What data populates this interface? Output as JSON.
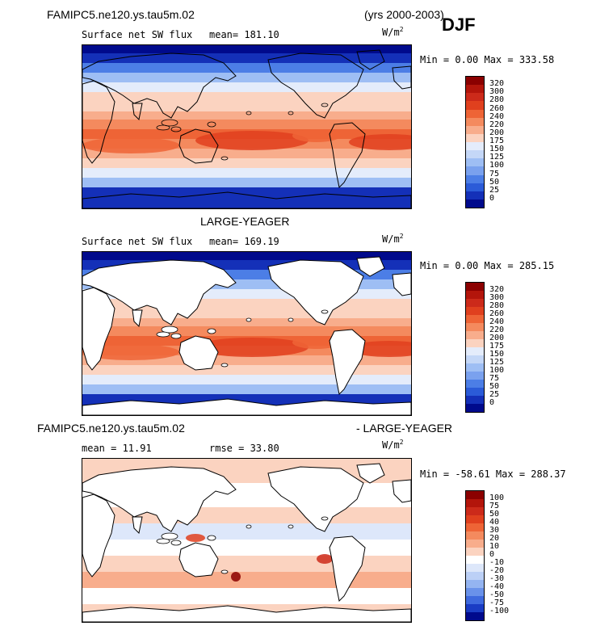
{
  "header": {
    "case_name": "FAMIPC5.ne120.ys.tau5m.02",
    "years": "(yrs 2000-2003)",
    "season": "DJF"
  },
  "panels": [
    {
      "title": "",
      "field_label": "Surface net SW flux",
      "stat1": "mean= 181.10",
      "stat2": "",
      "units": "W/m",
      "units_sup": "2",
      "minmax": "Min =   0.00 Max = 333.58",
      "land_masked": false,
      "colorbar": {
        "labels": [
          "320",
          "300",
          "280",
          "260",
          "240",
          "220",
          "200",
          "175",
          "150",
          "125",
          "100",
          "75",
          "50",
          "25",
          "0"
        ],
        "colors": [
          "#8b0000",
          "#b3150b",
          "#cc2a1a",
          "#e0401e",
          "#ee6436",
          "#f48a5e",
          "#f8ad8c",
          "#fbd3c0",
          "#e4ecfb",
          "#c4d7f7",
          "#9ebef4",
          "#7aa1ee",
          "#4c7ee6",
          "#2b5bd8",
          "#1430b8",
          "#000a8c"
        ]
      }
    },
    {
      "title": "LARGE-YEAGER",
      "field_label": "Surface net SW flux",
      "stat1": "mean= 169.19",
      "stat2": "",
      "units": "W/m",
      "units_sup": "2",
      "minmax": "Min =   0.00 Max = 285.15",
      "land_masked": true,
      "colorbar": {
        "labels": [
          "320",
          "300",
          "280",
          "260",
          "240",
          "220",
          "200",
          "175",
          "150",
          "125",
          "100",
          "75",
          "50",
          "25",
          "0"
        ],
        "colors": [
          "#8b0000",
          "#b3150b",
          "#cc2a1a",
          "#e0401e",
          "#ee6436",
          "#f48a5e",
          "#f8ad8c",
          "#fbd3c0",
          "#e4ecfb",
          "#c4d7f7",
          "#9ebef4",
          "#7aa1ee",
          "#4c7ee6",
          "#2b5bd8",
          "#1430b8",
          "#000a8c"
        ]
      }
    },
    {
      "title_left": "FAMIPC5.ne120.ys.tau5m.02",
      "title_right": "- LARGE-YEAGER",
      "field_label": "",
      "stat1": "mean =  11.91",
      "stat2": "rmse =  33.80",
      "units": "W/m",
      "units_sup": "2",
      "minmax": "Min = -58.61 Max = 288.37",
      "land_masked": true,
      "colorbar": {
        "labels": [
          "100",
          "75",
          "50",
          "40",
          "30",
          "20",
          "10",
          "0",
          "-10",
          "-20",
          "-30",
          "-40",
          "-50",
          "-75",
          "-100"
        ],
        "colors": [
          "#8b0000",
          "#b3150b",
          "#cc2a1a",
          "#e0401e",
          "#ee6436",
          "#f48a5e",
          "#f8ad8c",
          "#fbd3c0",
          "#ffffff",
          "#dde7fa",
          "#bcd0f6",
          "#94b4f1",
          "#6a92ea",
          "#3f6ade",
          "#1a3cc4",
          "#000a8c"
        ]
      }
    }
  ]
}
